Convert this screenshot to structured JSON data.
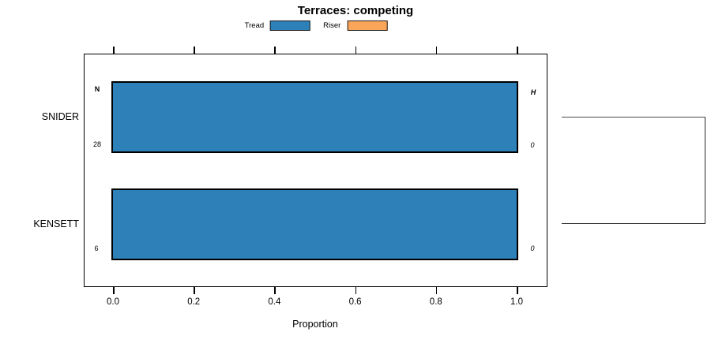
{
  "title": "Terraces: competing",
  "xlabel": "Proportion",
  "legend": {
    "items": [
      {
        "label": "Tread",
        "color": "#2E80B9"
      },
      {
        "label": "Riser",
        "color": "#FAA65A"
      }
    ]
  },
  "rows": [
    {
      "label": "SNIDER",
      "n_header": "N",
      "n_value": "28",
      "h_header": "H",
      "h_value": "0"
    },
    {
      "label": "KENSETT",
      "n_value": "6",
      "h_value": "0"
    }
  ],
  "chart_data": {
    "type": "bar",
    "orientation": "horizontal",
    "title": "Terraces: competing",
    "xlabel": "Proportion",
    "xlim": [
      0.0,
      1.0
    ],
    "x_ticks": [
      0.0,
      0.2,
      0.4,
      0.6,
      0.8,
      1.0
    ],
    "x_tick_labels": [
      "0.0",
      "0.2",
      "0.4",
      "0.6",
      "0.8",
      "1.0"
    ],
    "categories": [
      "SNIDER",
      "KENSETT"
    ],
    "series": [
      {
        "name": "Tread",
        "color": "#2E80B9",
        "values": [
          1.0,
          1.0
        ]
      },
      {
        "name": "Riser",
        "color": "#FAA65A",
        "values": [
          0.0,
          0.0
        ]
      }
    ],
    "annotations": {
      "N_column": {
        "header": "N",
        "values": [
          28,
          6
        ]
      },
      "H_column": {
        "header": "H",
        "values": [
          0,
          0
        ]
      }
    },
    "legend_position": "top-center",
    "grid": false,
    "axis_ticks_mirrored_top": true,
    "right_bracket_joins_rows": [
      "SNIDER",
      "KENSETT"
    ]
  }
}
